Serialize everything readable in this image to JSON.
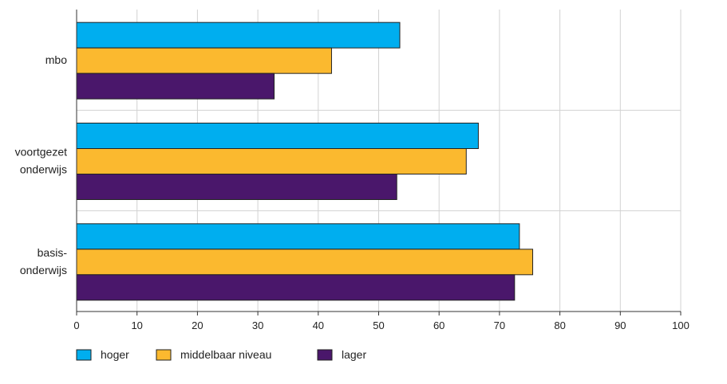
{
  "chart_data": {
    "type": "bar",
    "orientation": "horizontal",
    "categories": [
      [
        "mbo"
      ],
      [
        "voortgezet",
        "onderwijs"
      ],
      [
        "basis-",
        "onderwijs"
      ]
    ],
    "series": [
      {
        "name": "hoger",
        "color": "#00aeef",
        "values": [
          53.5,
          66.5,
          73.3
        ]
      },
      {
        "name": "middelbaar niveau",
        "color": "#fbb92f",
        "values": [
          42.2,
          64.5,
          75.5
        ]
      },
      {
        "name": "lager",
        "color": "#4a176b",
        "values": [
          32.7,
          53,
          72.5
        ]
      }
    ],
    "xlim": [
      0,
      100
    ],
    "xticks": [
      "0",
      "10",
      "20",
      "30",
      "40",
      "50",
      "60",
      "70",
      "80",
      "90",
      "100"
    ],
    "grid": true,
    "legend_position": "bottom-left",
    "title": "",
    "xlabel": "",
    "ylabel": ""
  }
}
